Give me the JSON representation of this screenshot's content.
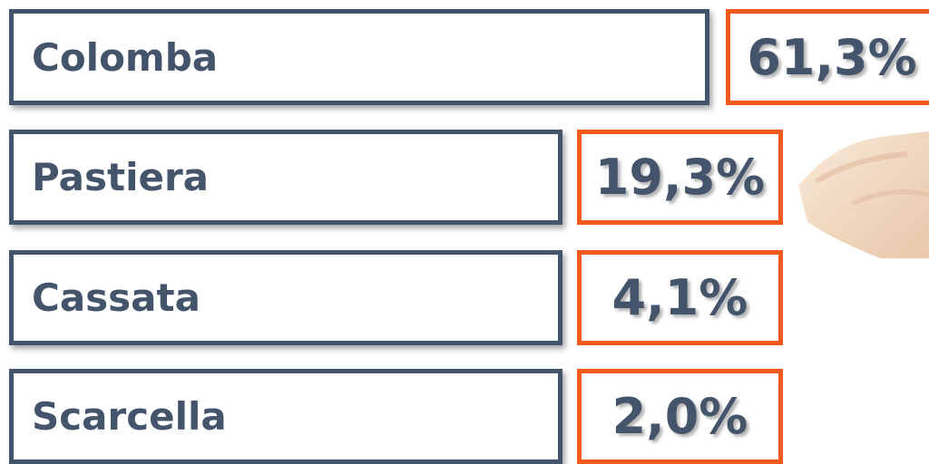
{
  "items": [
    {
      "label": "Colomba",
      "value": "61,3%"
    },
    {
      "label": "Pastiera",
      "value": "19,3%"
    },
    {
      "label": "Cassata",
      "value": "4,1%"
    },
    {
      "label": "Scarcella",
      "value": "2,0%"
    }
  ]
}
